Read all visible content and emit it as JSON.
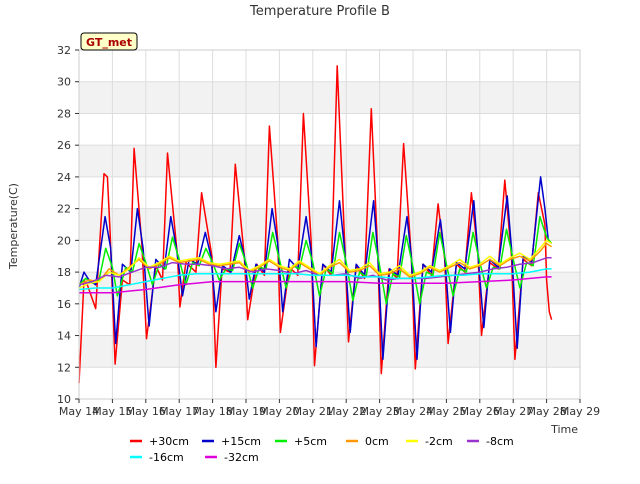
{
  "chart_data": {
    "type": "line",
    "title": "Temperature Profile B",
    "xlabel": "Time",
    "ylabel": "Temperature(C)",
    "badge": "GT_met",
    "ylim": [
      10,
      32
    ],
    "yticks": [
      10,
      12,
      14,
      16,
      18,
      20,
      22,
      24,
      26,
      28,
      30,
      32
    ],
    "xlim": [
      14,
      29
    ],
    "xticks": [
      {
        "v": 14,
        "label": "May 14"
      },
      {
        "v": 15,
        "label": "May 15"
      },
      {
        "v": 16,
        "label": "May 16"
      },
      {
        "v": 17,
        "label": "May 17"
      },
      {
        "v": 18,
        "label": "May 18"
      },
      {
        "v": 19,
        "label": "May 19"
      },
      {
        "v": 20,
        "label": "May 20"
      },
      {
        "v": 21,
        "label": "May 21"
      },
      {
        "v": 22,
        "label": "May 22"
      },
      {
        "v": 23,
        "label": "May 23"
      },
      {
        "v": 24,
        "label": "May 24"
      },
      {
        "v": 25,
        "label": "May 25"
      },
      {
        "v": 26,
        "label": "May 26"
      },
      {
        "v": 27,
        "label": "May 27"
      },
      {
        "v": 28,
        "label": "May 28"
      },
      {
        "v": 29,
        "label": "May 29"
      }
    ],
    "grid": true,
    "legend_position": "bottom",
    "series": [
      {
        "name": "+30cm",
        "color": "#ff0000",
        "width": 1.5,
        "x": [
          14.0,
          14.15,
          14.25,
          14.5,
          14.75,
          14.85,
          14.93,
          15.08,
          15.3,
          15.52,
          15.65,
          15.88,
          16.02,
          16.3,
          16.5,
          16.65,
          16.95,
          17.02,
          17.2,
          17.5,
          17.67,
          17.98,
          18.1,
          18.28,
          18.52,
          18.68,
          18.95,
          19.05,
          19.32,
          19.55,
          19.7,
          19.95,
          20.03,
          20.3,
          20.55,
          20.72,
          20.95,
          21.05,
          21.3,
          21.55,
          21.73,
          21.96,
          22.07,
          22.3,
          22.55,
          22.75,
          22.95,
          23.05,
          23.28,
          23.52,
          23.72,
          23.95,
          24.07,
          24.3,
          24.55,
          24.75,
          24.95,
          25.05,
          25.3,
          25.55,
          25.75,
          25.95,
          26.05,
          26.3,
          26.55,
          26.75,
          26.95,
          27.05,
          27.3,
          27.55,
          27.75,
          27.95,
          28.0,
          28.08,
          28.15
        ],
        "y": [
          11.0,
          17.5,
          17.2,
          15.7,
          24.2,
          24.0,
          20.5,
          12.2,
          17.5,
          17.2,
          25.8,
          19.8,
          13.8,
          18.4,
          17.5,
          25.5,
          19.0,
          15.8,
          18.6,
          18.0,
          23.0,
          19.0,
          12.0,
          18.2,
          18.0,
          24.8,
          19.0,
          15.0,
          18.5,
          17.8,
          27.2,
          20.0,
          14.2,
          18.3,
          17.8,
          28.0,
          20.0,
          12.1,
          18.5,
          17.8,
          31.0,
          19.5,
          13.6,
          18.4,
          17.6,
          28.3,
          19.0,
          11.6,
          18.2,
          17.6,
          26.1,
          19.0,
          11.9,
          18.5,
          17.8,
          22.3,
          18.8,
          13.5,
          18.5,
          18.0,
          23.0,
          19.0,
          14.0,
          18.6,
          18.2,
          23.8,
          19.0,
          12.5,
          18.8,
          18.4,
          23.0,
          21.0,
          17.5,
          15.5,
          15.0
        ]
      },
      {
        "name": "+15cm",
        "color": "#0000cc",
        "width": 1.5,
        "x": [
          14.0,
          14.15,
          14.3,
          14.5,
          14.78,
          14.95,
          15.1,
          15.3,
          15.55,
          15.75,
          15.92,
          16.1,
          16.3,
          16.55,
          16.75,
          16.92,
          17.1,
          17.3,
          17.55,
          17.78,
          17.95,
          18.1,
          18.3,
          18.55,
          18.8,
          18.95,
          19.1,
          19.3,
          19.55,
          19.78,
          19.95,
          20.1,
          20.3,
          20.55,
          20.8,
          20.95,
          21.1,
          21.3,
          21.55,
          21.8,
          21.95,
          22.12,
          22.3,
          22.55,
          22.82,
          22.95,
          23.1,
          23.3,
          23.55,
          23.82,
          23.95,
          24.12,
          24.3,
          24.55,
          24.82,
          24.95,
          25.12,
          25.3,
          25.55,
          25.82,
          25.95,
          26.12,
          26.3,
          26.55,
          26.82,
          26.95,
          27.12,
          27.3,
          27.55,
          27.82,
          27.95,
          28.05,
          28.15
        ],
        "y": [
          17.0,
          18.0,
          17.5,
          17.2,
          21.5,
          19.5,
          13.5,
          18.5,
          18.0,
          22.0,
          19.5,
          14.6,
          18.8,
          18.2,
          21.5,
          19.5,
          16.5,
          18.8,
          18.5,
          20.5,
          19.0,
          15.5,
          18.4,
          18.0,
          20.3,
          19.0,
          16.3,
          18.5,
          18.0,
          22.0,
          19.8,
          15.5,
          18.8,
          18.2,
          21.5,
          19.3,
          13.3,
          18.5,
          18.0,
          22.5,
          19.5,
          14.2,
          18.5,
          17.8,
          22.5,
          19.0,
          12.5,
          18.2,
          17.8,
          21.5,
          19.0,
          12.5,
          18.5,
          18.0,
          21.3,
          19.0,
          14.2,
          18.6,
          18.2,
          22.5,
          19.0,
          14.5,
          18.8,
          18.3,
          22.8,
          19.5,
          13.2,
          19.0,
          18.6,
          24.0,
          22.0,
          20.0,
          19.8
        ]
      },
      {
        "name": "+5cm",
        "color": "#00ee00",
        "width": 1.5,
        "x": [
          14.0,
          14.2,
          14.4,
          14.6,
          14.8,
          15.0,
          15.15,
          15.4,
          15.6,
          15.8,
          16.0,
          16.2,
          16.4,
          16.6,
          16.8,
          17.0,
          17.2,
          17.4,
          17.6,
          17.8,
          18.0,
          18.2,
          18.4,
          18.6,
          18.8,
          19.0,
          19.2,
          19.4,
          19.6,
          19.8,
          20.0,
          20.2,
          20.4,
          20.6,
          20.8,
          21.0,
          21.2,
          21.4,
          21.6,
          21.8,
          22.0,
          22.2,
          22.4,
          22.6,
          22.8,
          23.0,
          23.2,
          23.4,
          23.6,
          23.8,
          24.0,
          24.2,
          24.4,
          24.6,
          24.8,
          25.0,
          25.2,
          25.4,
          25.6,
          25.8,
          26.0,
          26.2,
          26.4,
          26.6,
          26.8,
          27.0,
          27.2,
          27.4,
          27.6,
          27.8,
          28.0,
          28.15
        ],
        "y": [
          17.2,
          17.6,
          17.3,
          17.5,
          19.5,
          18.3,
          16.5,
          18.3,
          18.0,
          19.8,
          18.6,
          17.2,
          18.5,
          18.2,
          20.2,
          18.8,
          17.2,
          18.6,
          18.4,
          19.5,
          18.6,
          17.5,
          18.2,
          18.1,
          19.8,
          18.6,
          17.0,
          18.3,
          18.2,
          20.5,
          18.8,
          17.0,
          18.4,
          18.2,
          20.0,
          18.6,
          16.5,
          18.2,
          17.9,
          20.5,
          18.6,
          16.2,
          18.0,
          17.7,
          20.5,
          18.4,
          16.0,
          17.9,
          17.7,
          20.3,
          18.3,
          16.0,
          18.0,
          17.8,
          20.5,
          18.5,
          16.5,
          18.2,
          18.0,
          20.5,
          18.6,
          17.0,
          18.3,
          18.2,
          20.7,
          18.8,
          17.0,
          18.6,
          18.4,
          21.5,
          20.2,
          19.8
        ]
      },
      {
        "name": "0cm",
        "color": "#ff9900",
        "width": 1.5,
        "x": [
          14.0,
          14.3,
          14.6,
          14.9,
          15.2,
          15.5,
          15.8,
          16.1,
          16.4,
          16.7,
          17.0,
          17.3,
          17.6,
          17.9,
          18.2,
          18.5,
          18.8,
          19.1,
          19.4,
          19.7,
          20.0,
          20.3,
          20.6,
          20.9,
          21.2,
          21.5,
          21.8,
          22.1,
          22.4,
          22.7,
          23.0,
          23.3,
          23.6,
          23.9,
          24.2,
          24.5,
          24.8,
          25.1,
          25.4,
          25.7,
          26.0,
          26.3,
          26.6,
          26.9,
          27.2,
          27.5,
          27.8,
          28.0,
          28.15
        ],
        "y": [
          17.2,
          17.5,
          17.4,
          18.2,
          17.8,
          18.3,
          18.8,
          18.2,
          18.5,
          18.9,
          18.6,
          18.7,
          18.8,
          18.5,
          18.4,
          18.5,
          18.6,
          18.0,
          18.3,
          18.7,
          18.3,
          18.1,
          18.6,
          18.2,
          17.8,
          18.3,
          18.6,
          18.0,
          18.1,
          18.4,
          17.8,
          17.9,
          18.2,
          17.7,
          17.9,
          18.3,
          18.0,
          18.3,
          18.6,
          18.2,
          18.4,
          18.8,
          18.4,
          18.8,
          19.0,
          18.7,
          19.3,
          19.8,
          19.6
        ]
      },
      {
        "name": "-2cm",
        "color": "#ffff00",
        "width": 1.5,
        "x": [
          14.0,
          14.3,
          14.6,
          14.9,
          15.2,
          15.5,
          15.8,
          16.1,
          16.4,
          16.7,
          17.0,
          17.3,
          17.6,
          17.9,
          18.2,
          18.5,
          18.8,
          19.1,
          19.4,
          19.7,
          20.0,
          20.3,
          20.6,
          20.9,
          21.2,
          21.5,
          21.8,
          22.1,
          22.4,
          22.7,
          23.0,
          23.3,
          23.6,
          23.9,
          24.2,
          24.5,
          24.8,
          25.1,
          25.4,
          25.7,
          26.0,
          26.3,
          26.6,
          26.9,
          27.2,
          27.5,
          27.8,
          28.0,
          28.15
        ],
        "y": [
          17.0,
          17.3,
          17.4,
          18.0,
          17.8,
          18.2,
          18.9,
          18.3,
          18.6,
          19.0,
          18.7,
          18.8,
          18.9,
          18.6,
          18.5,
          18.6,
          18.7,
          18.1,
          18.4,
          18.8,
          18.4,
          18.2,
          18.7,
          18.3,
          17.9,
          18.4,
          18.8,
          18.1,
          18.2,
          18.6,
          17.9,
          18.0,
          18.4,
          17.8,
          18.0,
          18.4,
          18.1,
          18.4,
          18.8,
          18.3,
          18.5,
          19.0,
          18.5,
          18.9,
          19.2,
          18.8,
          19.5,
          20.0,
          19.8
        ]
      },
      {
        "name": "-8cm",
        "color": "#9933cc",
        "width": 1.5,
        "x": [
          14.0,
          14.4,
          14.8,
          15.2,
          15.6,
          16.0,
          16.4,
          16.8,
          17.2,
          17.6,
          18.0,
          18.4,
          18.8,
          19.2,
          19.6,
          20.0,
          20.4,
          20.8,
          21.2,
          21.6,
          22.0,
          22.4,
          22.8,
          23.2,
          23.6,
          24.0,
          24.4,
          24.8,
          25.2,
          25.6,
          26.0,
          26.4,
          26.8,
          27.2,
          27.6,
          28.0,
          28.15
        ],
        "y": [
          17.2,
          17.4,
          17.8,
          17.7,
          18.0,
          18.3,
          18.3,
          18.6,
          18.5,
          18.5,
          18.4,
          18.2,
          18.3,
          18.0,
          18.2,
          18.1,
          17.9,
          18.1,
          17.8,
          17.8,
          17.9,
          17.6,
          17.8,
          17.5,
          17.6,
          17.6,
          17.6,
          17.7,
          17.8,
          17.9,
          18.0,
          18.2,
          18.3,
          18.5,
          18.6,
          18.9,
          18.9
        ]
      },
      {
        "name": "-16cm",
        "color": "#00ffff",
        "width": 1.5,
        "x": [
          14.0,
          14.5,
          15.0,
          15.5,
          16.0,
          16.5,
          17.0,
          17.5,
          18.0,
          18.5,
          19.0,
          19.5,
          20.0,
          20.5,
          21.0,
          21.5,
          22.0,
          22.5,
          23.0,
          23.5,
          24.0,
          24.5,
          25.0,
          25.5,
          26.0,
          26.5,
          27.0,
          27.5,
          28.0,
          28.15
        ],
        "y": [
          16.9,
          17.0,
          17.0,
          17.2,
          17.4,
          17.6,
          17.8,
          17.9,
          17.9,
          17.9,
          17.9,
          17.9,
          17.9,
          17.9,
          17.8,
          17.8,
          17.8,
          17.7,
          17.7,
          17.6,
          17.6,
          17.7,
          17.8,
          17.8,
          17.9,
          17.9,
          17.9,
          18.0,
          18.2,
          18.2
        ]
      },
      {
        "name": "-32cm",
        "color": "#dd00dd",
        "width": 1.5,
        "x": [
          14.0,
          15.0,
          16.0,
          17.0,
          17.5,
          18.0,
          19.0,
          20.0,
          21.0,
          22.0,
          23.0,
          24.0,
          25.0,
          26.0,
          27.0,
          28.0,
          28.15
        ],
        "y": [
          16.7,
          16.7,
          16.9,
          17.2,
          17.3,
          17.4,
          17.4,
          17.4,
          17.4,
          17.4,
          17.3,
          17.3,
          17.3,
          17.4,
          17.5,
          17.7,
          17.7
        ]
      }
    ]
  }
}
